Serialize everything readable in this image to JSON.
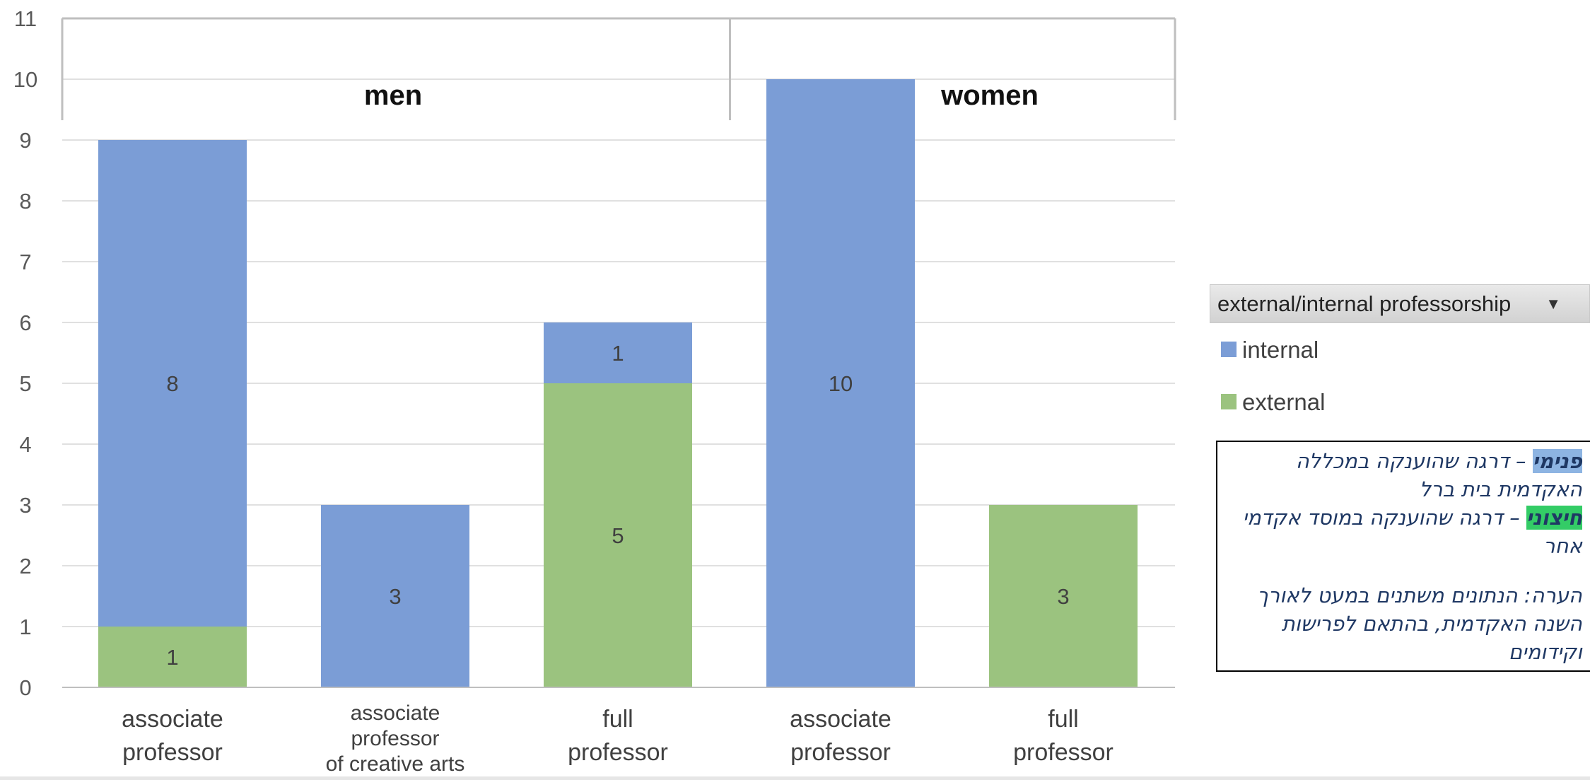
{
  "chart_data": {
    "type": "bar",
    "stacked": true,
    "groups": [
      {
        "label": "men",
        "categories": [
          "associate professor",
          "associate professor of creative arts",
          "full professor"
        ]
      },
      {
        "label": "women",
        "categories": [
          "associate professor",
          "full professor"
        ]
      }
    ],
    "category_labels": [
      [
        "associate",
        "professor"
      ],
      [
        "associate",
        "professor",
        "of creative arts"
      ],
      [
        "full",
        "professor"
      ],
      [
        "associate",
        "professor"
      ],
      [
        "full",
        "professor"
      ]
    ],
    "series": [
      {
        "name": "external",
        "color": "#9bc37f",
        "values": [
          1,
          0,
          5,
          0,
          3
        ]
      },
      {
        "name": "internal",
        "color": "#7b9dd6",
        "values": [
          8,
          3,
          1,
          10,
          0
        ]
      }
    ],
    "ylim": [
      0,
      11
    ],
    "yticks": [
      0,
      1,
      2,
      3,
      4,
      5,
      6,
      7,
      8,
      9,
      10,
      11
    ],
    "grid": true
  },
  "legend": {
    "title": "external/internal professorship",
    "dropdown_icon": "chevron-down-icon",
    "items": [
      {
        "label": "internal",
        "color": "#7b9dd6"
      },
      {
        "label": "external",
        "color": "#9bc37f"
      }
    ]
  },
  "note": {
    "line1_highlight": "פנימי",
    "line1_rest": " – דרגה שהוענקה במכללה",
    "line2": "האקדמית בית ברל",
    "line3_highlight": "חיצוני",
    "line3_rest": " – דרגה שהוענקה במוסד אקדמי",
    "line4": "אחר",
    "line5": "הערה: הנתונים משתנים במעט לאורך",
    "line6": "השנה האקדמית, בהתאם לפרישות",
    "line7": "וקידומים"
  }
}
